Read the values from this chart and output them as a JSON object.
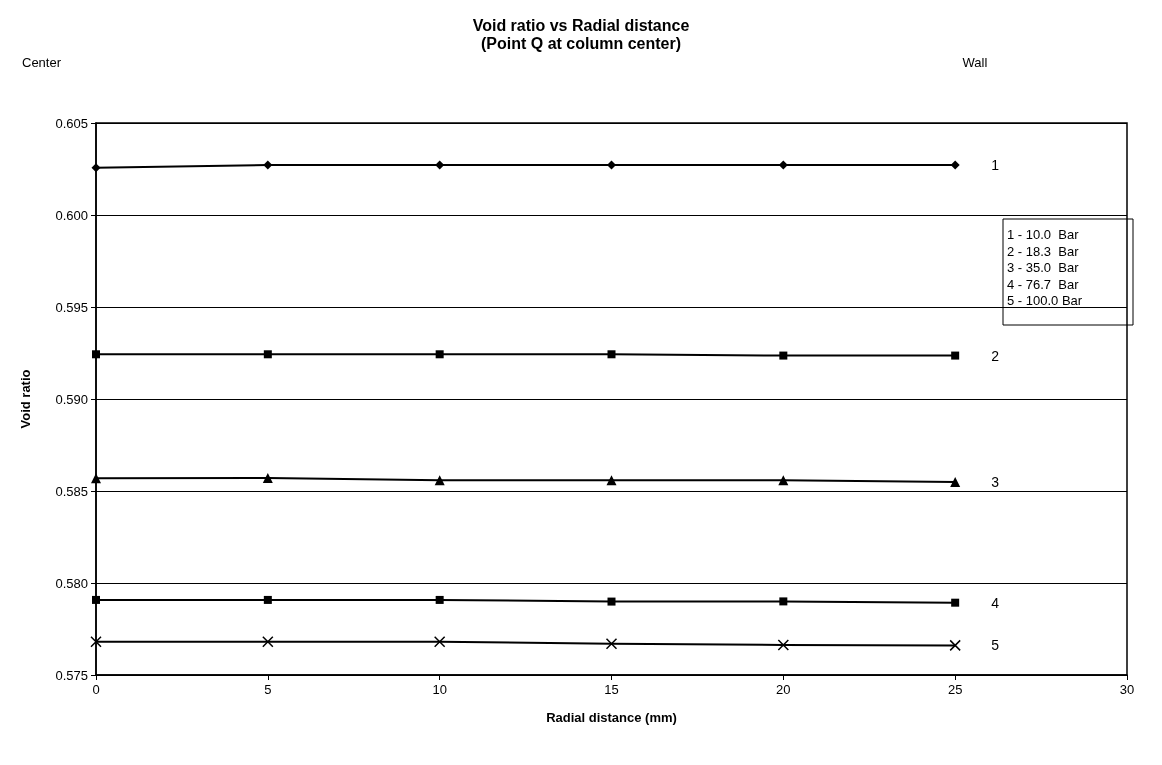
{
  "chart_data": {
    "type": "line",
    "title": "Void ratio vs Radial distance",
    "subtitle": "(Point Q at column center)",
    "xlabel": "Radial distance (mm)",
    "ylabel": "Void ratio",
    "x": [
      0,
      5,
      10,
      15,
      20,
      25
    ],
    "xlim": [
      0,
      30
    ],
    "xticks": [
      0,
      5,
      10,
      15,
      20,
      25,
      30
    ],
    "ylim": [
      0.575,
      0.605
    ],
    "yticks": [
      0.575,
      {
        "value": 0.58,
        "label": "0.580"
      },
      0.585,
      {
        "value": 0.59,
        "label": "0.590"
      },
      0.595,
      {
        "value": 0.6,
        "label": "0.600"
      },
      0.605
    ],
    "grid": "y",
    "legend": false,
    "line_style": "solid",
    "annotations": [
      "Center",
      "Wall",
      "1 - 10.0  Bar",
      "2 - 18.3  Bar",
      "3 - 35.0  Bar",
      "4 - 76.7  Bar",
      "5 - 100.0 Bar"
    ],
    "series": [
      {
        "name": "1",
        "color": "#000000",
        "marker": "diamond",
        "values": [
          0.60257,
          0.60272,
          0.60272,
          0.60272,
          0.60272,
          0.60272
        ]
      },
      {
        "name": "2",
        "color": "#000000",
        "marker": "square",
        "values": [
          0.59243,
          0.59243,
          0.59243,
          0.59243,
          0.59236,
          0.59236
        ]
      },
      {
        "name": "3",
        "color": "#000000",
        "marker": "triangle",
        "values": [
          0.58569,
          0.58571,
          0.58558,
          0.58558,
          0.58558,
          0.58549
        ]
      },
      {
        "name": "4",
        "color": "#000000",
        "marker": "square",
        "values": [
          0.57908,
          0.57908,
          0.57908,
          0.57899,
          0.579,
          0.57893
        ]
      },
      {
        "name": "5",
        "color": "#000000",
        "marker": "cross",
        "values": [
          0.57681,
          0.57681,
          0.57681,
          0.5767,
          0.57663,
          0.57661
        ]
      }
    ]
  }
}
